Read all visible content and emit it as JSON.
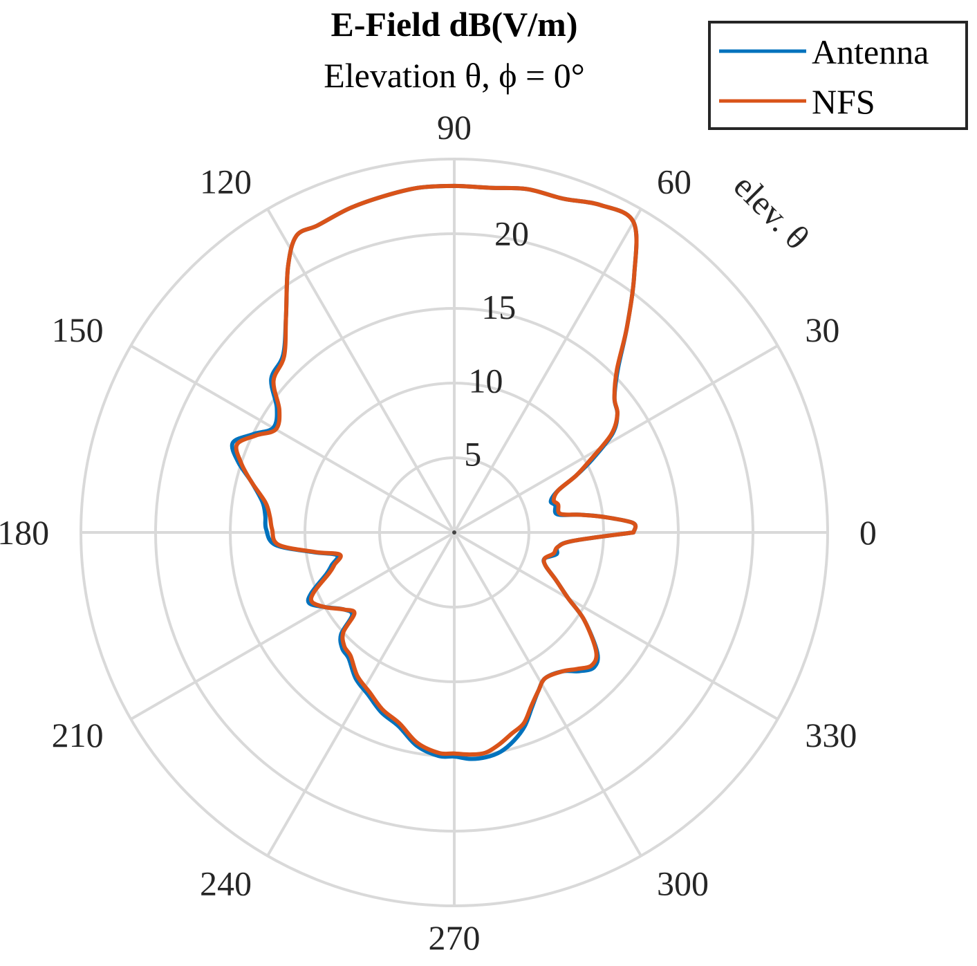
{
  "chart_data": {
    "type": "polar-line",
    "title": "E-Field dB(V/m)",
    "subtitle": "Elevation θ, ϕ = 0°",
    "r_axis_label": "elev. θ",
    "r_range": [
      0,
      25
    ],
    "r_ticks": [
      5,
      10,
      15,
      20
    ],
    "theta_ticks": [
      0,
      30,
      60,
      90,
      120,
      150,
      180,
      210,
      240,
      270,
      300,
      330
    ],
    "grid": true,
    "legend_position": "top-right",
    "series": [
      {
        "name": "Antenna",
        "color": "#0072BD",
        "points": [
          [
            0,
            12
          ],
          [
            3,
            12
          ],
          [
            6,
            10
          ],
          [
            8,
            8.5
          ],
          [
            10,
            7
          ],
          [
            15,
            7
          ],
          [
            18,
            6.8
          ],
          [
            22,
            7.5
          ],
          [
            25,
            9
          ],
          [
            28,
            10.5
          ],
          [
            32,
            12.5
          ],
          [
            36,
            13.5
          ],
          [
            40,
            14
          ],
          [
            45,
            15.5
          ],
          [
            50,
            18
          ],
          [
            55,
            21
          ],
          [
            60,
            24
          ],
          [
            66,
            24
          ],
          [
            72,
            23.5
          ],
          [
            78,
            23.5
          ],
          [
            84,
            23.2
          ],
          [
            90,
            23.2
          ],
          [
            96,
            23.2
          ],
          [
            102,
            23
          ],
          [
            108,
            22.8
          ],
          [
            114,
            22.5
          ],
          [
            118,
            22.5
          ],
          [
            122,
            21
          ],
          [
            128,
            18.3
          ],
          [
            134,
            16.5
          ],
          [
            140,
            16
          ],
          [
            145,
            14.5
          ],
          [
            150,
            14
          ],
          [
            154,
            15
          ],
          [
            158,
            16
          ],
          [
            162,
            15.2
          ],
          [
            166,
            14
          ],
          [
            171,
            13
          ],
          [
            175,
            12.7
          ],
          [
            179,
            12.6
          ],
          [
            184,
            12
          ],
          [
            188,
            9.5
          ],
          [
            191,
            8
          ],
          [
            195,
            8.5
          ],
          [
            198,
            9
          ],
          [
            203,
            10.4
          ],
          [
            206,
            10.8
          ],
          [
            210,
            10
          ],
          [
            215,
            9
          ],
          [
            219,
            8.8
          ],
          [
            222,
            10.2
          ],
          [
            226,
            10.8
          ],
          [
            230,
            11
          ],
          [
            236,
            11.8
          ],
          [
            242,
            12.3
          ],
          [
            248,
            13
          ],
          [
            254,
            13.5
          ],
          [
            260,
            14.5
          ],
          [
            266,
            15
          ],
          [
            270,
            15
          ],
          [
            274,
            15.2
          ],
          [
            278,
            15.2
          ],
          [
            282,
            15
          ],
          [
            286,
            14.5
          ],
          [
            290,
            13.8
          ],
          [
            294,
            12.8
          ],
          [
            298,
            12
          ],
          [
            302,
            11.5
          ],
          [
            308,
            11.8
          ],
          [
            312,
            12.5
          ],
          [
            316,
            13
          ],
          [
            320,
            12.5
          ],
          [
            326,
            10.5
          ],
          [
            330,
            8.8
          ],
          [
            335,
            7.5
          ],
          [
            340,
            6.5
          ],
          [
            344,
            6.3
          ],
          [
            348,
            7
          ],
          [
            352,
            7
          ],
          [
            356,
            8
          ],
          [
            360,
            12
          ]
        ]
      },
      {
        "name": "NFS",
        "color": "#D95319",
        "points": [
          [
            0,
            12
          ],
          [
            3,
            12
          ],
          [
            6,
            10
          ],
          [
            8,
            8.5
          ],
          [
            10,
            7.2
          ],
          [
            15,
            7.2
          ],
          [
            18,
            7
          ],
          [
            22,
            7.5
          ],
          [
            25,
            9
          ],
          [
            28,
            10.3
          ],
          [
            32,
            12.4
          ],
          [
            36,
            13.5
          ],
          [
            40,
            14
          ],
          [
            45,
            15.4
          ],
          [
            50,
            18
          ],
          [
            55,
            21
          ],
          [
            60,
            24
          ],
          [
            66,
            24
          ],
          [
            72,
            23.5
          ],
          [
            78,
            23.5
          ],
          [
            84,
            23.2
          ],
          [
            90,
            23.2
          ],
          [
            96,
            23.2
          ],
          [
            102,
            23
          ],
          [
            108,
            22.8
          ],
          [
            114,
            22.5
          ],
          [
            118,
            22.5
          ],
          [
            122,
            21
          ],
          [
            128,
            18.3
          ],
          [
            134,
            16.4
          ],
          [
            140,
            15.8
          ],
          [
            145,
            14.3
          ],
          [
            150,
            13.8
          ],
          [
            154,
            14.8
          ],
          [
            158,
            15.7
          ],
          [
            162,
            15
          ],
          [
            166,
            14
          ],
          [
            171,
            12.8
          ],
          [
            175,
            12.4
          ],
          [
            179,
            12.2
          ],
          [
            184,
            11.8
          ],
          [
            188,
            9.4
          ],
          [
            191,
            7.8
          ],
          [
            195,
            8.3
          ],
          [
            198,
            8.8
          ],
          [
            203,
            10.2
          ],
          [
            206,
            10.6
          ],
          [
            210,
            10
          ],
          [
            215,
            9
          ],
          [
            219,
            8.6
          ],
          [
            222,
            10
          ],
          [
            226,
            10.6
          ],
          [
            230,
            10.8
          ],
          [
            236,
            11.6
          ],
          [
            242,
            12.1
          ],
          [
            248,
            12.8
          ],
          [
            254,
            13.3
          ],
          [
            260,
            14.3
          ],
          [
            266,
            14.8
          ],
          [
            270,
            14.8
          ],
          [
            274,
            14.9
          ],
          [
            278,
            14.9
          ],
          [
            282,
            14.5
          ],
          [
            286,
            14
          ],
          [
            290,
            13.6
          ],
          [
            294,
            12.7
          ],
          [
            298,
            12
          ],
          [
            302,
            11.5
          ],
          [
            308,
            11.8
          ],
          [
            312,
            12.3
          ],
          [
            316,
            12.8
          ],
          [
            320,
            12.4
          ],
          [
            326,
            10.5
          ],
          [
            330,
            8.8
          ],
          [
            335,
            7.5
          ],
          [
            340,
            6.5
          ],
          [
            344,
            6.3
          ],
          [
            348,
            6.8
          ],
          [
            352,
            7
          ],
          [
            356,
            8
          ],
          [
            360,
            12
          ]
        ]
      }
    ]
  }
}
